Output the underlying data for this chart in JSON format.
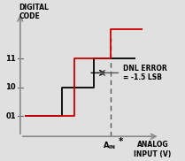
{
  "bg_color": "#e0e0e0",
  "ideal_color": "#000000",
  "actual_color": "#cc0000",
  "axis_color": "#888888",
  "dashed_color": "#555555",
  "arrow_color": "#555555",
  "dnl_label": "DNL ERROR\n= -1.5 LSB",
  "ytick_labels": [
    "01",
    "10",
    "11"
  ],
  "ytick_positions": [
    1,
    2,
    3
  ],
  "title_digital": "DIGITAL\nCODE",
  "title_analog": "ANALOG\nINPUT (V)",
  "ain_star": "A",
  "xlim": [
    0.0,
    7.5
  ],
  "ylim": [
    -0.3,
    5.0
  ],
  "ain_x": 4.5,
  "axis_x": 0.8,
  "axis_y": 0.3
}
